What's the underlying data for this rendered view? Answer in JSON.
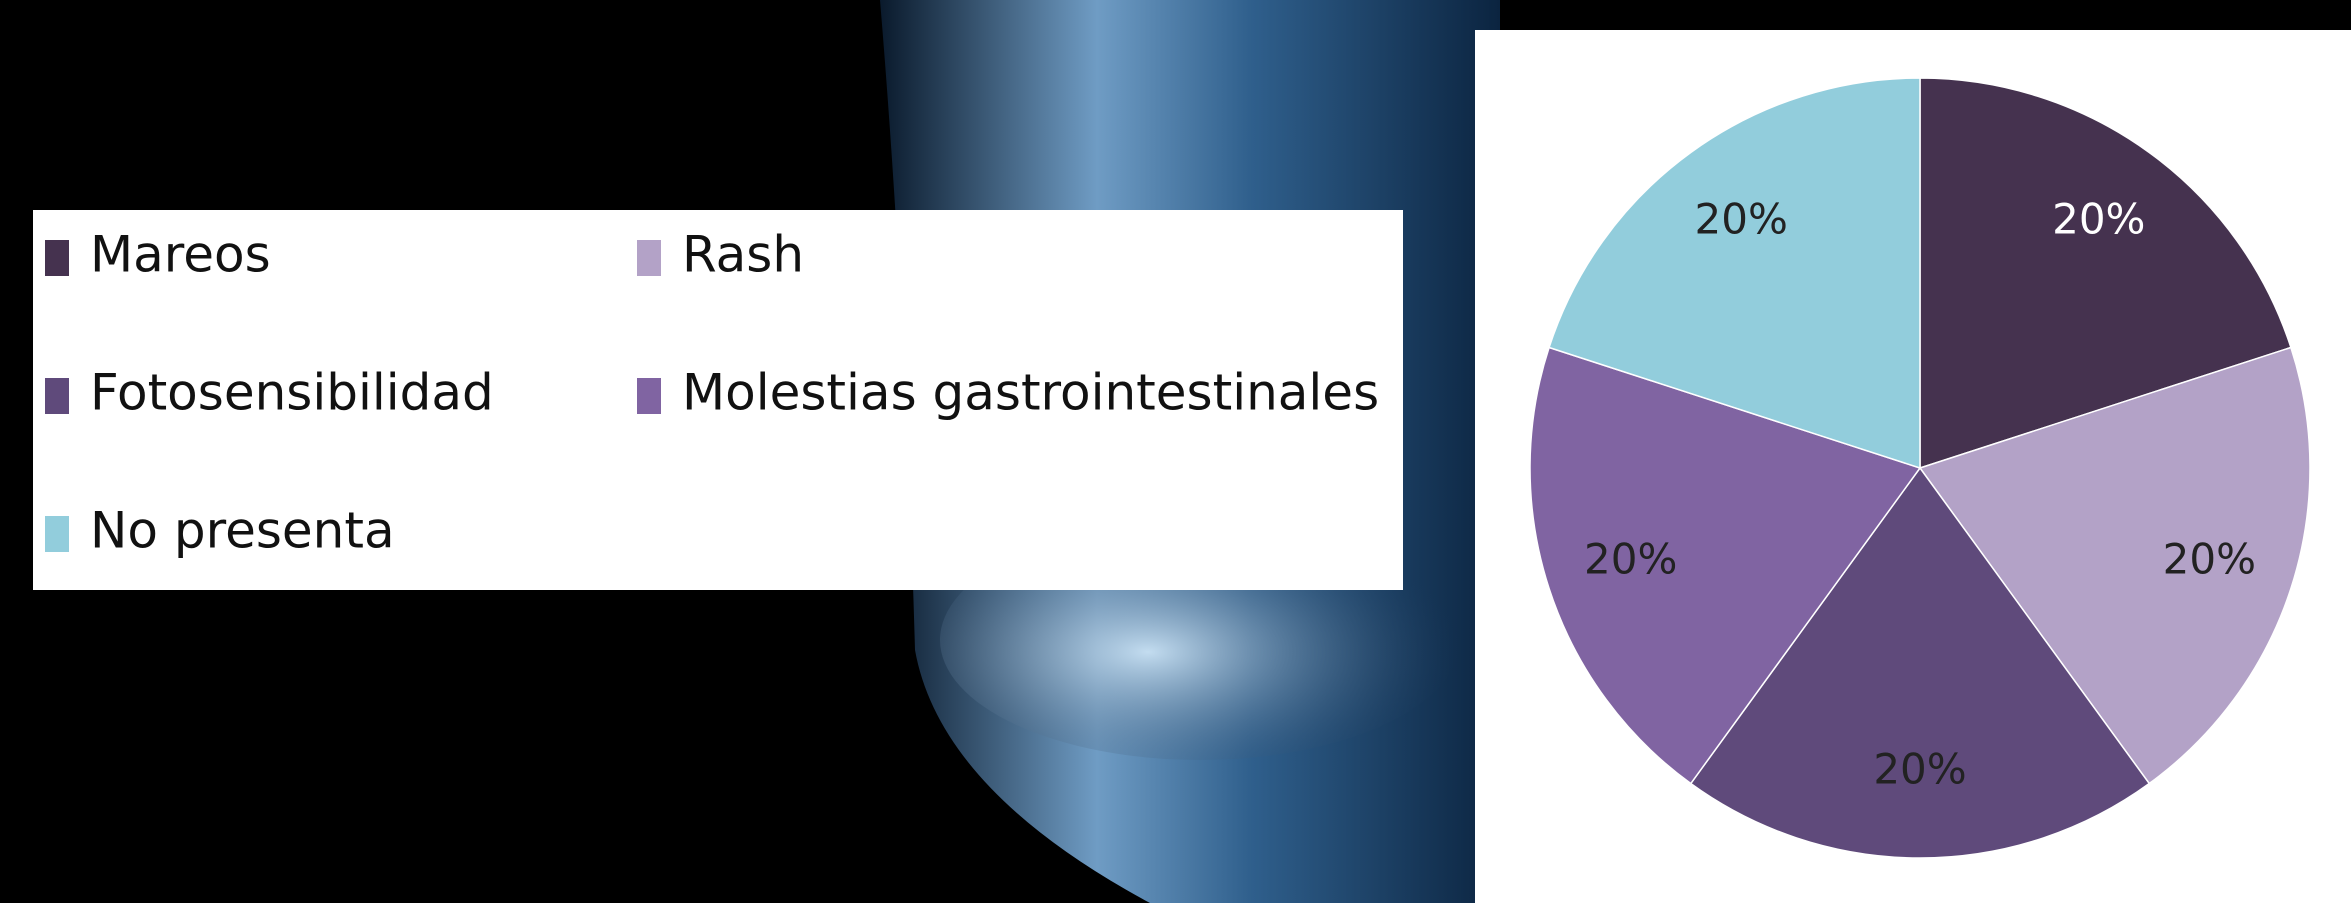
{
  "chart_data": {
    "type": "pie",
    "categories": [
      "Mareos",
      "Rash",
      "Fotosensibilidad",
      "Molestias gastrointestinales",
      "No presenta"
    ],
    "values": [
      20,
      20,
      20,
      20,
      20
    ],
    "value_labels": [
      "20%",
      "20%",
      "20%",
      "20%",
      "20%"
    ],
    "colors": [
      "#45324f",
      "#b3a2c7",
      "#5f4a7b",
      "#8064a2",
      "#92cddc"
    ],
    "legend": "left"
  }
}
